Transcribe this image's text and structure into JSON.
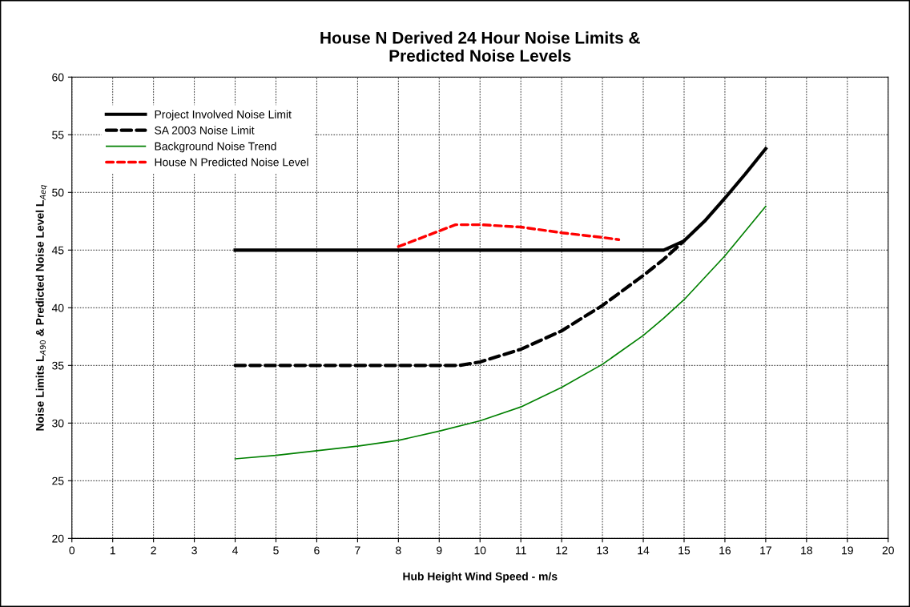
{
  "chart_data": {
    "type": "line",
    "title": "House N Derived 24 Hour Noise Limits &\nPredicted Noise Levels",
    "xlabel": "Hub Height Wind Speed - m/s",
    "ylabel": "Noise Limits L$_{A90}$ & Predicted Noise Level L$_{Aeq}$",
    "xlim": [
      0,
      20
    ],
    "xticks": [
      0,
      1,
      2,
      3,
      4,
      5,
      6,
      7,
      8,
      9,
      10,
      11,
      12,
      13,
      14,
      15,
      16,
      17,
      18,
      19,
      20
    ],
    "ylim": [
      20,
      60
    ],
    "yticks": [
      20,
      25,
      30,
      35,
      40,
      45,
      50,
      55,
      60
    ],
    "grid": true,
    "legend": "top left",
    "marker": "none",
    "series": [
      {
        "name": "Project Involved Noise Limit",
        "color": "#000000",
        "line_style": "solid",
        "x": [
          4,
          14.5,
          15,
          15.5,
          16,
          16.5,
          17
        ],
        "values": [
          45,
          45,
          45.8,
          47.5,
          49.5,
          51.6,
          53.8
        ]
      },
      {
        "name": "SA 2003 Noise Limit",
        "color": "#000000",
        "line_style": "dashed",
        "x": [
          4,
          9.5,
          10,
          11,
          12,
          13,
          14,
          14.5,
          15
        ],
        "values": [
          35,
          35,
          35.3,
          36.4,
          38.0,
          40.2,
          42.8,
          44.2,
          45.8
        ]
      },
      {
        "name": "Background Noise Trend",
        "color": "#008000",
        "line_style": "solid",
        "x": [
          4,
          5,
          6,
          7,
          8,
          9,
          10,
          11,
          12,
          13,
          14,
          14.5,
          15,
          16,
          17
        ],
        "values": [
          26.9,
          27.2,
          27.6,
          28.0,
          28.5,
          29.3,
          30.2,
          31.4,
          33.1,
          35.1,
          37.6,
          39.1,
          40.7,
          44.5,
          48.8
        ]
      },
      {
        "name": "House N Predicted Noise Level",
        "color": "#ff0000",
        "line_style": "dashed",
        "x": [
          8,
          9.4,
          10,
          11,
          12,
          13,
          13.4
        ],
        "values": [
          45.3,
          47.2,
          47.2,
          47.0,
          46.5,
          46.1,
          45.9
        ]
      }
    ]
  }
}
